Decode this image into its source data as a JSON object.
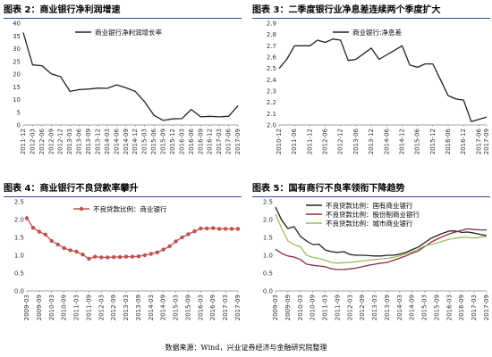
{
  "source": "数据来源：Wind，兴业证券经济与金融研究院整理",
  "colors": {
    "accent": "#2c4f8f",
    "line_dark": "#222222",
    "pink": "#c0504d",
    "maroon": "#8b2c3c",
    "green": "#9bbb59"
  },
  "chart_data": [
    {
      "id": "chart2",
      "panel_title": "图表 2：商业银行净利润增速",
      "type": "line",
      "x": [
        "2011-12",
        "2012-03",
        "2012-06",
        "2012-09",
        "2012-12",
        "2013-03",
        "2013-06",
        "2013-09",
        "2013-12",
        "2014-03",
        "2014-06",
        "2014-09",
        "2014-12",
        "2015-03",
        "2015-06",
        "2015-09",
        "2015-12",
        "2016-03",
        "2016-06",
        "2016-09",
        "2016-12",
        "2017-03",
        "2017-06",
        "2017-09"
      ],
      "x_tick_labels": [
        "2011-12",
        "2012-03",
        "2012-06",
        "2012-09",
        "2012-12",
        "2013-03",
        "2013-06",
        "2013-09",
        "2013-12",
        "2014-03",
        "2014-06",
        "2014-09",
        "2014-12",
        "2015-03",
        "2015-06",
        "2015-09",
        "2015-12",
        "2016-03",
        "2016-06",
        "2016-09",
        "2016-12",
        "2017-03",
        "2017-06",
        "2017-09"
      ],
      "ylim": [
        0,
        40
      ],
      "yticks": [
        0,
        5,
        10,
        15,
        20,
        25,
        30,
        35,
        40
      ],
      "series": [
        {
          "name": "商业银行净利润增长率",
          "color": "#222222",
          "marker": "none",
          "values": [
            36.3,
            23.6,
            23.3,
            20.1,
            19.0,
            13.2,
            13.9,
            14.1,
            14.5,
            14.4,
            15.8,
            14.6,
            13.2,
            9.1,
            3.8,
            1.8,
            2.4,
            2.5,
            6.1,
            3.2,
            3.4,
            3.2,
            3.4,
            7.5
          ]
        }
      ]
    },
    {
      "id": "chart3",
      "panel_title": "图表 3：二季度银行业净息差连续两个季度扩大",
      "type": "line",
      "x": [
        "2010-12",
        "2011-03",
        "2011-06",
        "2011-09",
        "2011-12",
        "2012-03",
        "2012-06",
        "2012-09",
        "2012-12",
        "2013-03",
        "2013-06",
        "2013-09",
        "2013-12",
        "2014-03",
        "2014-06",
        "2014-09",
        "2014-12",
        "2015-03",
        "2015-06",
        "2015-09",
        "2015-12",
        "2016-03",
        "2016-06",
        "2016-09",
        "2016-12",
        "2017-03",
        "2017-06",
        "2017-09"
      ],
      "x_tick_labels": [
        "2010-12",
        "2011-06",
        "2011-12",
        "2012-06",
        "2012-12",
        "2013-06",
        "2013-12",
        "2014-06",
        "2014-12",
        "2015-06",
        "2015-12",
        "2016-06",
        "2016-12",
        "2017-06",
        "2017-09"
      ],
      "ylim": [
        2.0,
        2.9
      ],
      "yticks": [
        2.0,
        2.1,
        2.2,
        2.3,
        2.4,
        2.5,
        2.6,
        2.7,
        2.8,
        2.9
      ],
      "series": [
        {
          "name": "商业银行:净息差",
          "color": "#222222",
          "marker": "none",
          "values": [
            2.5,
            2.58,
            2.7,
            2.7,
            2.7,
            2.75,
            2.73,
            2.76,
            2.75,
            2.57,
            2.58,
            2.63,
            2.68,
            2.58,
            2.62,
            2.66,
            2.7,
            2.53,
            2.51,
            2.54,
            2.54,
            2.4,
            2.26,
            2.23,
            2.22,
            2.03,
            2.05,
            2.07
          ]
        }
      ]
    },
    {
      "id": "chart4",
      "panel_title": "图表 4：商业银行不良贷款率攀升",
      "type": "line",
      "x": [
        "2009-03",
        "2009-06",
        "2009-09",
        "2009-12",
        "2010-03",
        "2010-06",
        "2010-09",
        "2010-12",
        "2011-03",
        "2011-06",
        "2011-09",
        "2011-12",
        "2012-03",
        "2012-06",
        "2012-09",
        "2012-12",
        "2013-03",
        "2013-06",
        "2013-09",
        "2013-12",
        "2014-03",
        "2014-06",
        "2014-09",
        "2014-12",
        "2015-03",
        "2015-06",
        "2015-09",
        "2015-12",
        "2016-03",
        "2016-06",
        "2016-09",
        "2016-12",
        "2017-03",
        "2017-06",
        "2017-09"
      ],
      "x_tick_labels": [
        "2009-03",
        "2009-09",
        "2010-03",
        "2010-09",
        "2011-03",
        "2011-09",
        "2012-03",
        "2012-09",
        "2013-03",
        "2013-09",
        "2014-03",
        "2014-09",
        "2015-03",
        "2015-09",
        "2016-03",
        "2016-09",
        "2017-03",
        "2017-09"
      ],
      "ylim": [
        0,
        2.5
      ],
      "yticks": [
        0,
        0.5,
        1,
        1.5,
        2,
        2.5
      ],
      "series": [
        {
          "name": "不良贷款比例：商业银行",
          "color": "#c0504d",
          "marker": "circle",
          "values": [
            2.04,
            1.77,
            1.66,
            1.58,
            1.4,
            1.3,
            1.2,
            1.14,
            1.1,
            1.02,
            0.9,
            0.96,
            0.94,
            0.94,
            0.95,
            0.95,
            0.96,
            0.96,
            0.97,
            1.0,
            1.04,
            1.08,
            1.16,
            1.25,
            1.39,
            1.5,
            1.59,
            1.67,
            1.75,
            1.75,
            1.76,
            1.74,
            1.74,
            1.74,
            1.74
          ]
        }
      ]
    },
    {
      "id": "chart5",
      "panel_title": "图表 5：国有商行不良率领衔下降趋势",
      "type": "line",
      "x": [
        "2009-03",
        "2009-06",
        "2009-09",
        "2009-12",
        "2010-03",
        "2010-06",
        "2010-09",
        "2010-12",
        "2011-03",
        "2011-06",
        "2011-09",
        "2011-12",
        "2012-03",
        "2012-06",
        "2012-09",
        "2012-12",
        "2013-03",
        "2013-06",
        "2013-09",
        "2013-12",
        "2014-03",
        "2014-06",
        "2014-09",
        "2014-12",
        "2015-03",
        "2015-06",
        "2015-09",
        "2015-12",
        "2016-03",
        "2016-06",
        "2016-09",
        "2016-12",
        "2017-03",
        "2017-06",
        "2017-09"
      ],
      "x_tick_labels": [
        "2009-03",
        "2009-09",
        "2010-03",
        "2010-09",
        "2011-03",
        "2011-09",
        "2012-03",
        "2012-09",
        "2013-03",
        "2013-09",
        "2014-03",
        "2014-09",
        "2015-03",
        "2015-09",
        "2016-03",
        "2016-09",
        "2017-03",
        "2017-09"
      ],
      "ylim": [
        0,
        2.5
      ],
      "yticks": [
        0,
        0.5,
        1,
        1.5,
        2,
        2.5
      ],
      "series": [
        {
          "name": "不良贷款比例：国有商业银行",
          "color": "#222222",
          "marker": "none",
          "values": [
            2.35,
            1.98,
            1.75,
            1.8,
            1.53,
            1.4,
            1.3,
            1.31,
            1.15,
            1.1,
            1.08,
            1.1,
            1.02,
            1.0,
            1.0,
            0.99,
            0.98,
            0.98,
            1.0,
            1.0,
            1.03,
            1.08,
            1.16,
            1.23,
            1.35,
            1.47,
            1.55,
            1.62,
            1.68,
            1.68,
            1.64,
            1.65,
            1.62,
            1.58,
            1.55
          ]
        },
        {
          "name": "不良贷款比例：股份制商业银行",
          "color": "#8b2c3c",
          "marker": "none",
          "values": [
            1.17,
            1.05,
            0.98,
            0.95,
            0.88,
            0.75,
            0.72,
            0.7,
            0.68,
            0.62,
            0.6,
            0.6,
            0.62,
            0.64,
            0.68,
            0.72,
            0.75,
            0.78,
            0.8,
            0.86,
            0.92,
            0.98,
            1.06,
            1.12,
            1.24,
            1.36,
            1.45,
            1.53,
            1.6,
            1.65,
            1.7,
            1.74,
            1.72,
            1.71,
            1.71
          ]
        },
        {
          "name": "不良贷款比例：城市商业银行",
          "color": "#9bbb59",
          "marker": "none",
          "values": [
            2.15,
            1.75,
            1.4,
            1.3,
            1.24,
            1.0,
            0.94,
            0.91,
            0.86,
            0.8,
            0.78,
            0.79,
            0.8,
            0.82,
            0.84,
            0.86,
            0.88,
            0.9,
            0.91,
            0.94,
            0.98,
            1.04,
            1.1,
            1.17,
            1.26,
            1.3,
            1.34,
            1.4,
            1.45,
            1.48,
            1.5,
            1.5,
            1.48,
            1.51,
            1.52
          ]
        }
      ]
    }
  ]
}
